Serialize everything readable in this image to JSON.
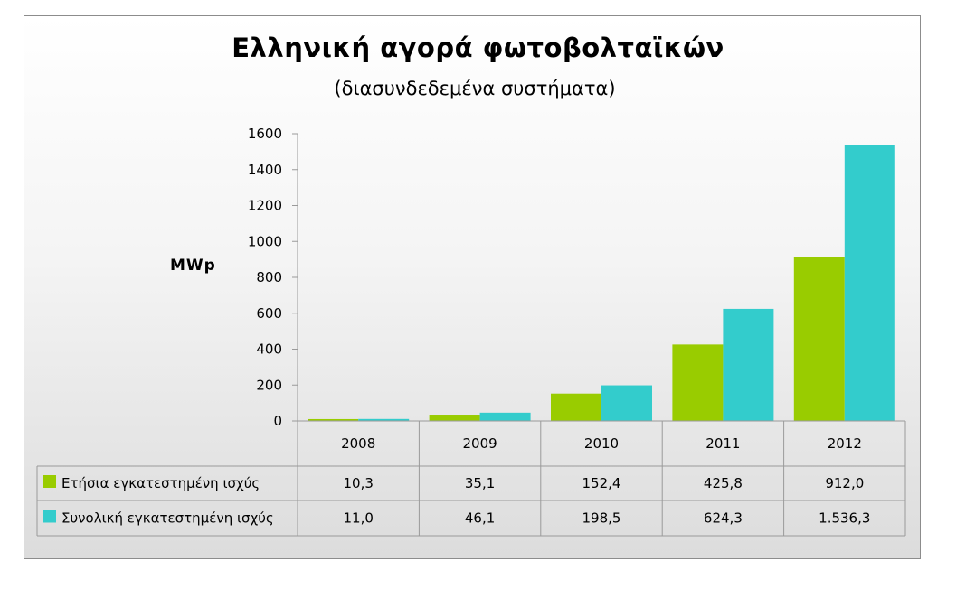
{
  "colors": {
    "series1": "#99cc00",
    "series2": "#33cccc",
    "grid": "#9a9a9a"
  },
  "chart_data": {
    "type": "bar",
    "title": "Ελληνική αγορά φωτοβολταϊκών",
    "subtitle": "(διασυνδεδεμένα συστήματα)",
    "xlabel": "",
    "ylabel": "MWp",
    "ylim": [
      0,
      1600
    ],
    "yticks": [
      0,
      200,
      400,
      600,
      800,
      1000,
      1200,
      1400,
      1600
    ],
    "grid": false,
    "legend": "data-table",
    "categories": [
      "2008",
      "2009",
      "2010",
      "2011",
      "2012"
    ],
    "series": [
      {
        "name": "Ετήσια εγκατεστημένη ισχύς",
        "values": [
          10.3,
          35.1,
          152.4,
          425.8,
          912.0
        ],
        "labels": [
          "10,3",
          "35,1",
          "152,4",
          "425,8",
          "912,0"
        ]
      },
      {
        "name": "Συνολική εγκατεστημένη ισχύς",
        "values": [
          11.0,
          46.1,
          198.5,
          624.3,
          1536.3
        ],
        "labels": [
          "11,0",
          "46,1",
          "198,5",
          "624,3",
          "1.536,3"
        ]
      }
    ]
  }
}
